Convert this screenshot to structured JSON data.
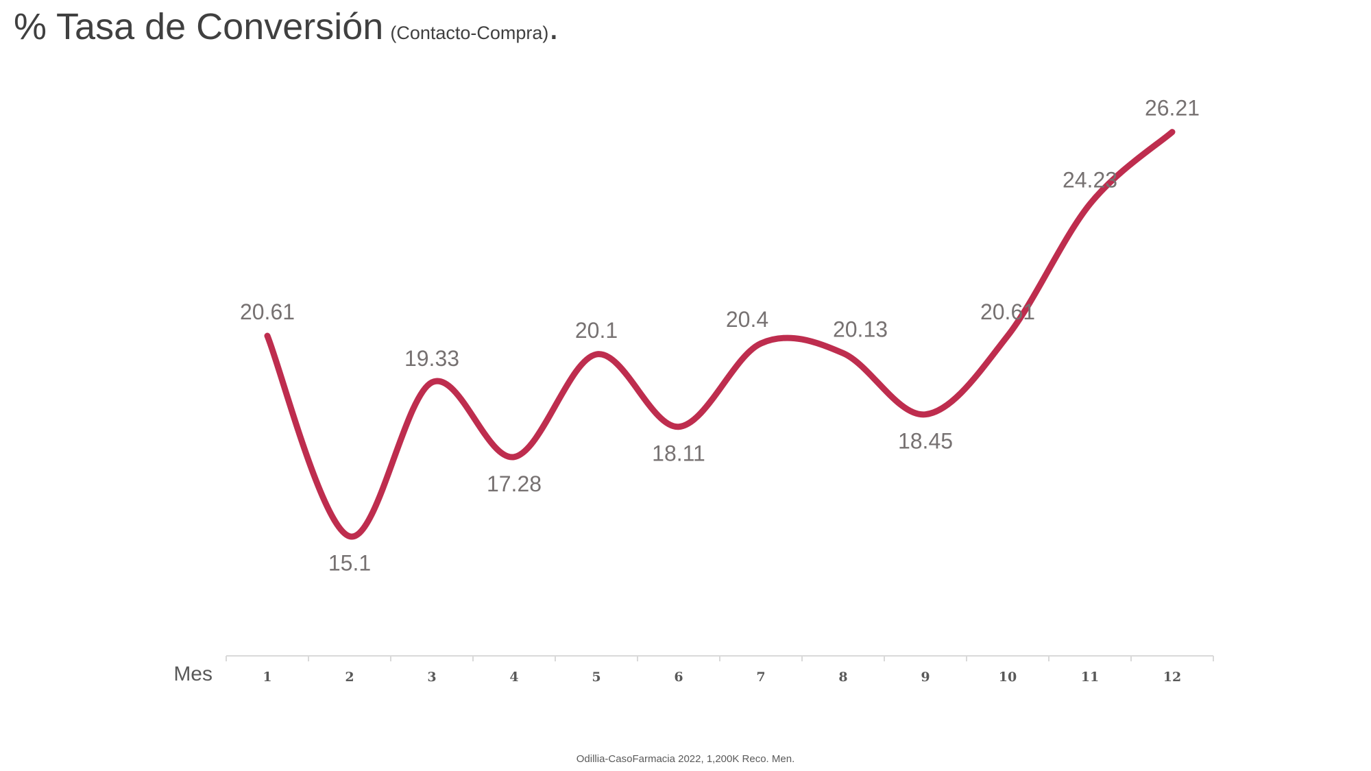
{
  "title": {
    "main": "% Tasa de Conversión",
    "sub": "(Contacto-Compra)",
    "dot": "."
  },
  "footer": "Odillia-CasoFarmacia  2022, 1,200K Reco. Men.",
  "colors": {
    "line": "#BE2D4E",
    "label": "#767171",
    "axis": "#D9D9D9",
    "tick_label": "#595959",
    "title": "#404040"
  },
  "chart_data": {
    "type": "line",
    "title": "% Tasa de Conversión (Contacto-Compra).",
    "xlabel": "Mes",
    "ylabel": "",
    "x": [
      "1",
      "2",
      "3",
      "4",
      "5",
      "6",
      "7",
      "8",
      "9",
      "10",
      "11",
      "12"
    ],
    "series": [
      {
        "values": [
          20.61,
          15.1,
          19.33,
          17.28,
          20.1,
          18.11,
          20.4,
          20.13,
          18.45,
          20.61,
          24.23,
          26.21
        ],
        "data_labels": [
          "20.61",
          "15.1",
          "19.33",
          "17.28",
          "20.1",
          "18.11",
          "20.4",
          "20.13",
          "18.45",
          "20.61",
          "24.23",
          "26.21"
        ],
        "label_position": [
          "above",
          "below",
          "above",
          "below",
          "above",
          "below",
          "above",
          "above",
          "below",
          "above",
          "above",
          "above"
        ]
      }
    ],
    "ylim": [
      12.7,
      27.2
    ],
    "smooth": true,
    "grid": false,
    "legend": "none",
    "y_axis_visible": false
  }
}
